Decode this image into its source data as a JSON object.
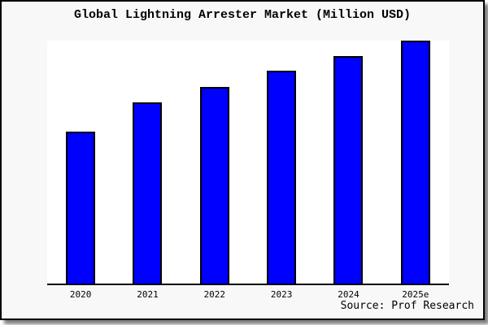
{
  "chart_data": {
    "type": "bar",
    "title": "Global Lightning Arrester Market (Million USD)",
    "categories": [
      "2020",
      "2021",
      "2022",
      "2023",
      "2024",
      "2025e"
    ],
    "values": [
      62.5,
      74.5,
      81,
      87.5,
      93.5,
      100
    ],
    "xlabel": "",
    "ylabel": "",
    "ylim": [
      0,
      100
    ],
    "grid": false,
    "legend": "none",
    "value_note_units": "relative index (no y-axis shown in chart)"
  },
  "source": {
    "label": "Source: Prof Research"
  },
  "colors": {
    "bar": "#0000ff",
    "bar_outline": "#000000",
    "card_background": "#f8f8f8",
    "plot_background": "#ffffff",
    "border": "#000000"
  }
}
